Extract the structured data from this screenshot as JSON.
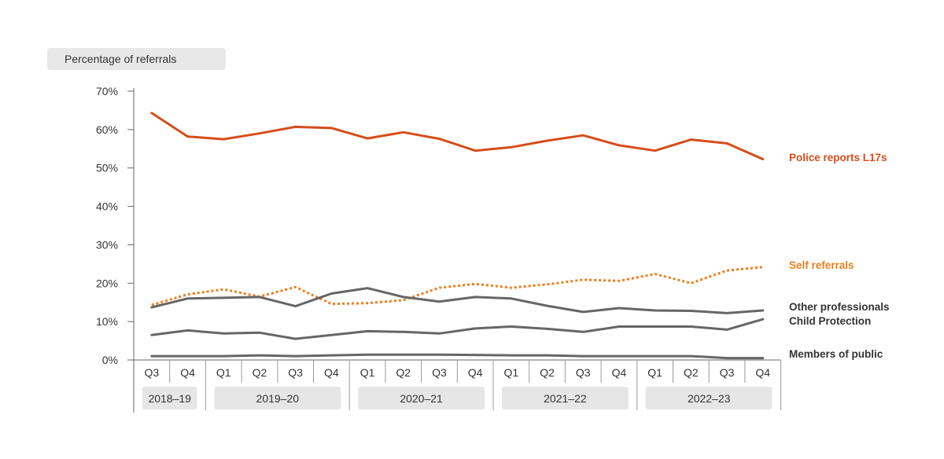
{
  "chart_data": {
    "type": "line",
    "ylabel": "Percentage of referrals",
    "ylim": [
      0,
      70
    ],
    "yticks": [
      0,
      10,
      20,
      30,
      40,
      50,
      60,
      70
    ],
    "ytick_labels": [
      "0%",
      "10%",
      "20%",
      "30%",
      "40%",
      "50%",
      "60%",
      "70%"
    ],
    "quarters": [
      "Q3",
      "Q4",
      "Q1",
      "Q2",
      "Q3",
      "Q4",
      "Q1",
      "Q2",
      "Q3",
      "Q4",
      "Q1",
      "Q2",
      "Q3",
      "Q4",
      "Q1",
      "Q2",
      "Q3",
      "Q4"
    ],
    "years": [
      {
        "label": "2018–19",
        "start": 0,
        "count": 2
      },
      {
        "label": "2019–20",
        "start": 2,
        "count": 4
      },
      {
        "label": "2020–21",
        "start": 6,
        "count": 4
      },
      {
        "label": "2021–22",
        "start": 10,
        "count": 4
      },
      {
        "label": "2022–23",
        "start": 14,
        "count": 4
      }
    ],
    "grid": false,
    "legend": "right-end labels",
    "series": [
      {
        "name": "Police reports L17s",
        "color": "#d64d1a",
        "dash": false,
        "values": [
          64.3,
          58.2,
          57.5,
          59.0,
          60.7,
          60.4,
          57.7,
          59.3,
          57.6,
          54.5,
          55.4,
          57.1,
          58.5,
          55.9,
          54.5,
          57.4,
          56.4,
          52.3
        ]
      },
      {
        "name": "Self referrals",
        "color": "#ef7d1a",
        "dash": true,
        "values": [
          14.3,
          17.1,
          18.4,
          16.5,
          19.0,
          14.6,
          14.8,
          15.6,
          18.8,
          19.8,
          18.8,
          19.7,
          20.9,
          20.6,
          22.4,
          20.0,
          23.3,
          24.2
        ]
      },
      {
        "name": "Other professionals",
        "color": "#666666",
        "dash": false,
        "values": [
          13.7,
          16.0,
          16.2,
          16.4,
          14.0,
          17.3,
          18.7,
          16.4,
          15.2,
          16.4,
          16.0,
          14.1,
          12.5,
          13.5,
          12.9,
          12.8,
          12.2,
          12.9
        ]
      },
      {
        "name": "Child Protection",
        "color": "#666666",
        "dash": false,
        "values": [
          6.5,
          7.7,
          6.9,
          7.1,
          5.5,
          6.5,
          7.5,
          7.3,
          6.9,
          8.2,
          8.7,
          8.1,
          7.3,
          8.7,
          8.7,
          8.7,
          7.9,
          10.6
        ]
      },
      {
        "name": "Members of public",
        "color": "#666666",
        "dash": false,
        "values": [
          1.0,
          1.0,
          1.0,
          1.2,
          1.0,
          1.2,
          1.4,
          1.4,
          1.4,
          1.3,
          1.2,
          1.2,
          1.0,
          1.0,
          1.0,
          1.0,
          0.5,
          0.5
        ]
      }
    ]
  }
}
